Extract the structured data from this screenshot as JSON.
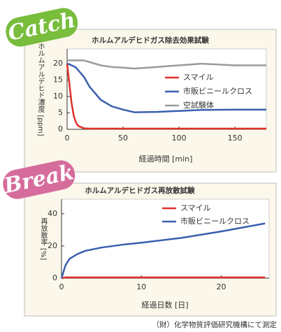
{
  "badges": [
    {
      "text": "Catch",
      "color": "#79bd3c"
    },
    {
      "text": "Break",
      "color": "#d66c9c"
    }
  ],
  "footnote": "（財）化学物質評価研究機構にて測定",
  "chart_data": [
    {
      "type": "line",
      "title": "ホルムアルデヒドガス除去効果試験",
      "x_label": "経過時間 [min]",
      "y_label": "ホルムアルデヒド濃度 [ppm]",
      "x": [
        0,
        2,
        4,
        6,
        8,
        10,
        15,
        20,
        25,
        30,
        40,
        50,
        60,
        80,
        100,
        120,
        150,
        178
      ],
      "series": [
        {
          "name": "スマイル",
          "color": "#e0302a",
          "values": [
            20,
            14,
            8,
            4,
            2,
            1,
            0.3,
            0.2,
            0.2,
            0.2,
            0.2,
            0.2,
            0.2,
            0.2,
            0.2,
            0.2,
            0.2,
            0.2
          ]
        },
        {
          "name": "市販ビニールクロス",
          "color": "#3a5fb0",
          "values": [
            20,
            19.8,
            19.5,
            19.2,
            18.8,
            18,
            16,
            13,
            11,
            9,
            7,
            6,
            5.2,
            5.3,
            5.6,
            5.9,
            6,
            6
          ]
        },
        {
          "name": "空試験体",
          "color": "#9a9a9a",
          "values": [
            21,
            21,
            21,
            21,
            21,
            21,
            21,
            20.5,
            20,
            19.5,
            19,
            18.8,
            18.5,
            19,
            19.5,
            20,
            19.5,
            19.5
          ]
        }
      ],
      "xlim": [
        0,
        178
      ],
      "ylim": [
        0,
        24.5
      ],
      "xticks": [
        0,
        50,
        100,
        150
      ],
      "yticks": [
        0,
        5,
        10,
        15,
        20
      ]
    },
    {
      "type": "line",
      "title": "ホルムアルデヒドガス再放散試験",
      "x_label": "経過日数 [日]",
      "y_label": "再放散率 [%]",
      "x": [
        0,
        0.5,
        1,
        2,
        3,
        5,
        8,
        10,
        15,
        20,
        25.5
      ],
      "series": [
        {
          "name": "スマイル",
          "color": "#e0302a",
          "values": [
            0,
            0.5,
            0.5,
            0.5,
            0.5,
            0.5,
            0.5,
            0.5,
            0.5,
            0.5,
            0.5
          ]
        },
        {
          "name": "市販ビニールクロス",
          "color": "#3a5fb0",
          "values": [
            0,
            8,
            12,
            15,
            17,
            19,
            21,
            22,
            25,
            29,
            34
          ]
        }
      ],
      "xlim": [
        0,
        26
      ],
      "ylim": [
        0,
        49
      ],
      "xticks": [
        0,
        10,
        20
      ],
      "yticks": [
        0,
        20,
        40
      ]
    }
  ]
}
